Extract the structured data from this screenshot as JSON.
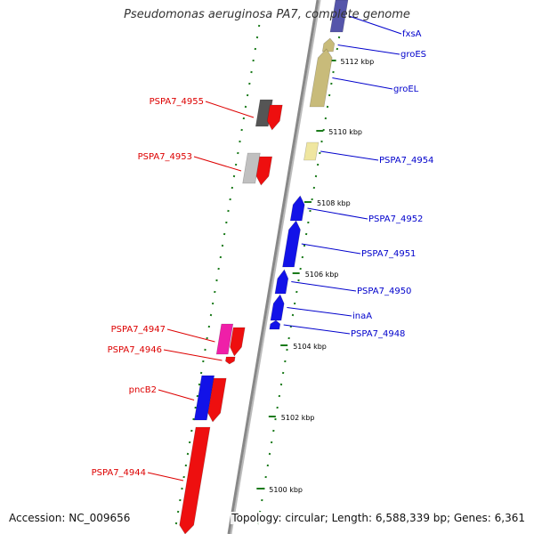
{
  "title": "Pseudomonas aeruginosa PA7, complete genome",
  "accession": "Accession: NC_009656",
  "topology": "Topology: circular; Length: 6,588,339 bp; Genes: 6,361",
  "scale_labels": [
    "5112 kbp",
    "5110 kbp",
    "5108 kbp",
    "5106 kbp",
    "5104 kbp",
    "5102 kbp",
    "5100 kbp"
  ],
  "colors": {
    "forward_label": "#0000cc",
    "reverse_label": "#dd0000",
    "scale_mark": "#1a7a1a",
    "backbone": "#888888",
    "blue_gene": "#1212e8",
    "red_gene": "#ee0f0f",
    "khaki_gene": "#c8bb7a",
    "light_yellow_gene": "#efe6a0",
    "gray_gene": "#555555",
    "light_gray_gene": "#c0c0c0",
    "magenta_gene": "#ef1fa8",
    "slate_gene": "#5555aa"
  },
  "forward_genes": [
    {
      "name": "fxsA",
      "color": "slate_gene"
    },
    {
      "name": "groES",
      "color": "khaki_gene"
    },
    {
      "name": "groEL",
      "color": "khaki_gene"
    },
    {
      "name": "PSPA7_4954",
      "color": "light_yellow_gene"
    },
    {
      "name": "PSPA7_4952",
      "color": "blue_gene"
    },
    {
      "name": "PSPA7_4951",
      "color": "blue_gene"
    },
    {
      "name": "PSPA7_4950",
      "color": "blue_gene"
    },
    {
      "name": "inaA",
      "color": "blue_gene"
    },
    {
      "name": "PSPA7_4948",
      "color": "blue_gene"
    }
  ],
  "reverse_genes": [
    {
      "name": "PSPA7_4955",
      "color": "red_gene"
    },
    {
      "name": "PSPA7_4953",
      "color": "red_gene"
    },
    {
      "name": "PSPA7_4947",
      "color": "red_gene"
    },
    {
      "name": "PSPA7_4946",
      "color": "red_gene"
    },
    {
      "name": "pncB2",
      "color": "red_gene"
    },
    {
      "name": "PSPA7_4944",
      "color": "red_gene"
    }
  ]
}
